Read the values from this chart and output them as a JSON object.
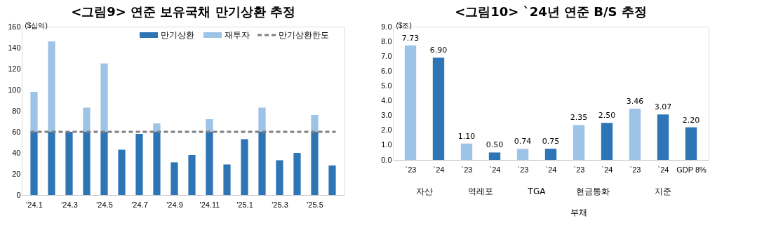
{
  "chart_data": [
    {
      "type": "bar",
      "title": "<그림9> 연준 보유국채 만기상환 추정",
      "ylabel": "($십억)",
      "stacked": true,
      "legend": "top right",
      "categories": [
        "'24.1",
        null,
        "'24.3",
        null,
        "'24.5",
        null,
        "'24.7",
        null,
        "'24.9",
        null,
        "'24.11",
        null,
        "'25.1",
        null,
        "'25.3",
        null,
        "'25.5",
        null
      ],
      "series": [
        {
          "name": "만기상환",
          "color": "#2e75b6",
          "values": [
            60,
            60,
            60,
            60,
            60,
            43,
            58,
            60,
            31,
            38,
            60,
            29,
            53,
            60,
            33,
            40,
            60,
            28
          ]
        },
        {
          "name": "재투자",
          "color": "#9dc3e6",
          "values": [
            38,
            86,
            null,
            23,
            65,
            null,
            null,
            8,
            null,
            null,
            12,
            null,
            null,
            23,
            null,
            null,
            16,
            null
          ]
        }
      ],
      "ref_lines": [
        {
          "axis": "y",
          "value": 60,
          "label": "만기상환한도",
          "color": "#808080",
          "line_style": "dashed"
        }
      ],
      "ylim": [
        0,
        160
      ],
      "yticks": [
        0,
        20,
        40,
        60,
        80,
        100,
        120,
        140,
        160
      ]
    },
    {
      "type": "bar",
      "title": "<그림10> `24년 연준 B/S 추정",
      "ylabel": "($조)",
      "data_labels": true,
      "categories": [
        "`23",
        "`24",
        "`23",
        "`24",
        "`23",
        "`24",
        "`23",
        "`24",
        "`23",
        "`24",
        "GDP 8%"
      ],
      "values": [
        7.73,
        6.9,
        1.1,
        0.5,
        0.74,
        0.75,
        2.35,
        2.5,
        3.46,
        3.07,
        2.2
      ],
      "colors": [
        "#9dc3e6",
        "#2e75b6",
        "#9dc3e6",
        "#2e75b6",
        "#9dc3e6",
        "#2e75b6",
        "#9dc3e6",
        "#2e75b6",
        "#9dc3e6",
        "#2e75b6",
        "#2e75b6"
      ],
      "value_labels": [
        "7.73",
        "6.90",
        "1.10",
        "0.50",
        "0.74",
        "0.75",
        "2.35",
        "2.50",
        "3.46",
        "3.07",
        "2.20"
      ],
      "annotations": [
        "자산",
        "역레포",
        "TGA",
        "현금통화",
        "지준",
        "부채"
      ],
      "ylim": [
        0,
        9
      ],
      "yticks": [
        {
          "value": 0,
          "label": "0.0"
        },
        {
          "value": 1,
          "label": "1.0"
        },
        {
          "value": 2,
          "label": "2.0"
        },
        {
          "value": 3,
          "label": "3.0"
        },
        {
          "value": 4,
          "label": "4.0"
        },
        {
          "value": 5,
          "label": "5.0"
        },
        {
          "value": 6,
          "label": "6.0"
        },
        {
          "value": 7,
          "label": "7.0"
        },
        {
          "value": 8,
          "label": "8.0"
        },
        {
          "value": 9,
          "label": "9.0"
        }
      ]
    }
  ]
}
